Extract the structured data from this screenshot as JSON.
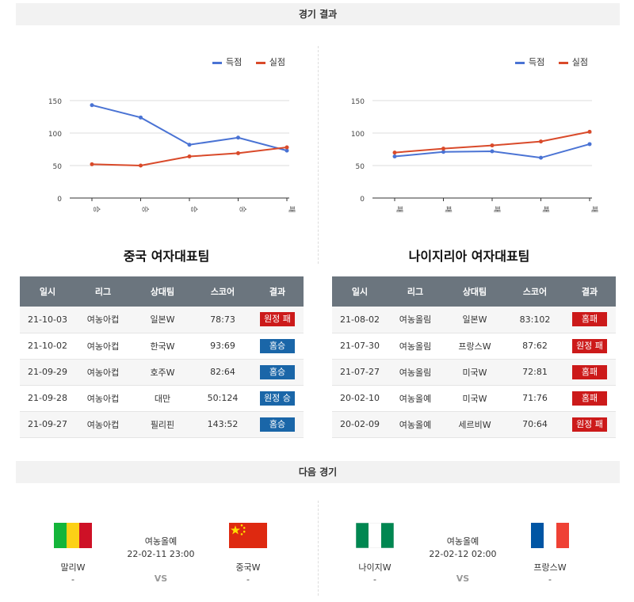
{
  "sections": {
    "results_title": "경기 결과",
    "next_title": "다음 경기"
  },
  "legend": {
    "scored": "득점",
    "conceded": "실점",
    "scored_color": "#4a73d4",
    "conceded_color": "#d94a2a"
  },
  "teams": [
    {
      "name": "중국 여자대표팀",
      "chart_data": {
        "type": "line",
        "categories": [
          "승",
          "승",
          "승",
          "승",
          "패"
        ],
        "ylim": [
          0,
          150
        ],
        "yticks": [
          0,
          50,
          100,
          150
        ],
        "series": [
          {
            "name": "득점",
            "values": [
              143,
              124,
              82,
              93,
              73
            ]
          },
          {
            "name": "실점",
            "values": [
              52,
              50,
              64,
              69,
              78
            ]
          }
        ],
        "legend_position": "top-right"
      },
      "headers": [
        "일시",
        "리그",
        "상대팀",
        "스코어",
        "결과"
      ],
      "rows": [
        {
          "date": "21-10-03",
          "league": "여농아컵",
          "opponent": "일본W",
          "score": "78:73",
          "result": "원정 패",
          "kind": "away-loss"
        },
        {
          "date": "21-10-02",
          "league": "여농아컵",
          "opponent": "한국W",
          "score": "93:69",
          "result": "홈승",
          "kind": "home-win"
        },
        {
          "date": "21-09-29",
          "league": "여농아컵",
          "opponent": "호주W",
          "score": "82:64",
          "result": "홈승",
          "kind": "home-win"
        },
        {
          "date": "21-09-28",
          "league": "여농아컵",
          "opponent": "대만",
          "score": "50:124",
          "result": "원정 승",
          "kind": "away-win"
        },
        {
          "date": "21-09-27",
          "league": "여농아컵",
          "opponent": "필리핀",
          "score": "143:52",
          "result": "홈승",
          "kind": "home-win"
        }
      ]
    },
    {
      "name": "나이지리아 여자대표팀",
      "chart_data": {
        "type": "line",
        "categories": [
          "패",
          "패",
          "패",
          "패",
          "패"
        ],
        "ylim": [
          0,
          150
        ],
        "yticks": [
          0,
          50,
          100,
          150
        ],
        "series": [
          {
            "name": "득점",
            "values": [
              64,
              71,
              72,
              62,
              83
            ]
          },
          {
            "name": "실점",
            "values": [
              70,
              76,
              81,
              87,
              102
            ]
          }
        ],
        "legend_position": "top-right"
      },
      "headers": [
        "일시",
        "리그",
        "상대팀",
        "스코어",
        "결과"
      ],
      "rows": [
        {
          "date": "21-08-02",
          "league": "여농올림",
          "opponent": "일본W",
          "score": "83:102",
          "result": "홈패",
          "kind": "home-loss"
        },
        {
          "date": "21-07-30",
          "league": "여농올림",
          "opponent": "프랑스W",
          "score": "87:62",
          "result": "원정 패",
          "kind": "away-loss"
        },
        {
          "date": "21-07-27",
          "league": "여농올림",
          "opponent": "미국W",
          "score": "72:81",
          "result": "홈패",
          "kind": "home-loss"
        },
        {
          "date": "20-02-10",
          "league": "여농올예",
          "opponent": "미국W",
          "score": "71:76",
          "result": "홈패",
          "kind": "home-loss"
        },
        {
          "date": "20-02-09",
          "league": "여농올예",
          "opponent": "세르비W",
          "score": "70:64",
          "result": "원정 패",
          "kind": "away-loss"
        }
      ]
    }
  ],
  "next_matches": [
    {
      "home": "말리W",
      "away": "중국W",
      "league": "여농올예",
      "datetime": "22-02-11 23:00",
      "vs": "VS",
      "home_score": "-",
      "away_score": "-",
      "home_flag": "mali-flag",
      "away_flag": "china-flag"
    },
    {
      "home": "나이지W",
      "away": "프랑스W",
      "league": "여농올예",
      "datetime": "22-02-12 02:00",
      "vs": "VS",
      "home_score": "-",
      "away_score": "-",
      "home_flag": "nigeria-flag",
      "away_flag": "france-flag"
    }
  ]
}
